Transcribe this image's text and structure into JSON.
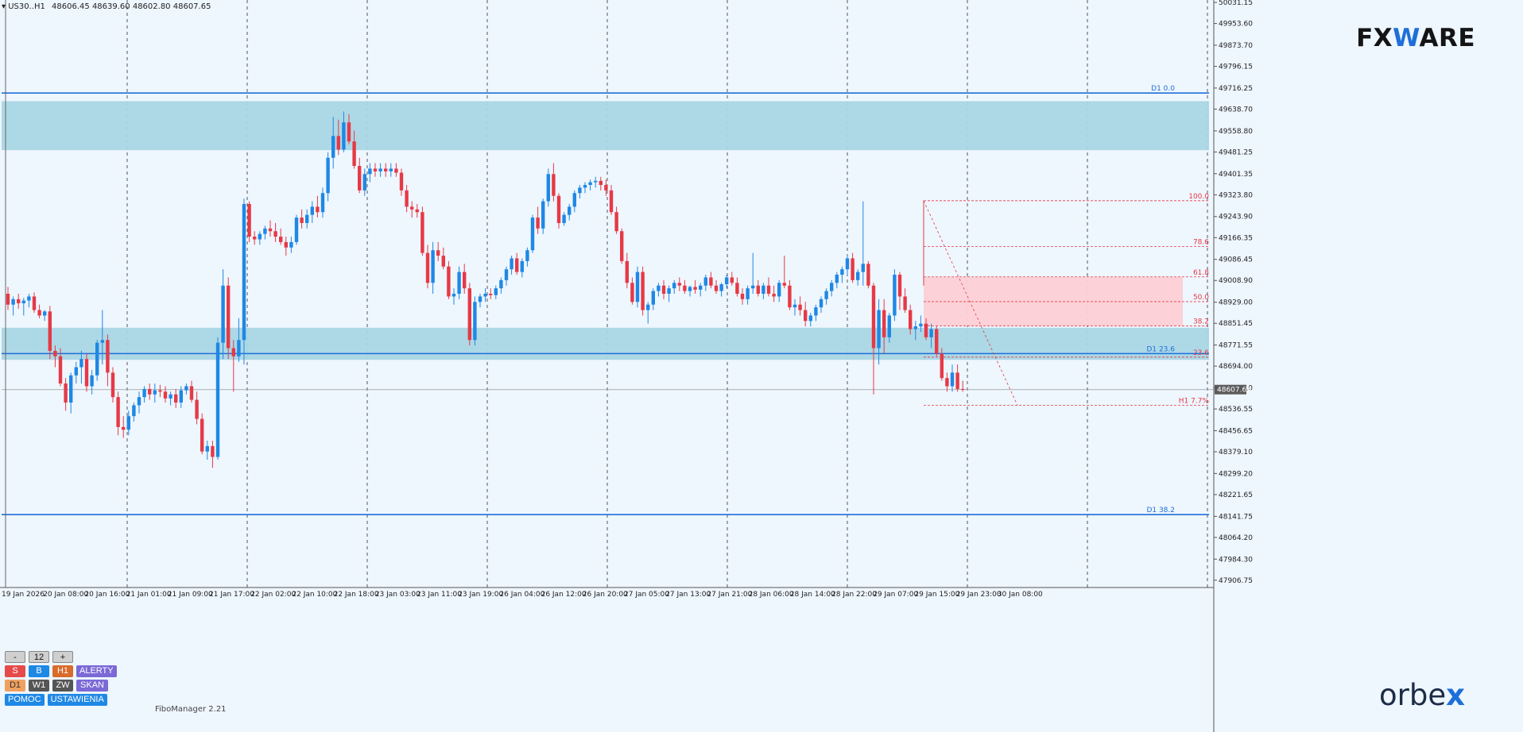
{
  "header": {
    "symbol": "US30..H1",
    "ohlc": "48606.45 48639.60 48602.80 48607.65"
  },
  "brand": {
    "fxware_pre": "FX",
    "fxware_v": "W",
    "fxware_post": "ARE",
    "orbex_pre": "orbe",
    "orbex_x": "x"
  },
  "panel": {
    "minus": "-",
    "count": "12",
    "plus": "+",
    "s": "S",
    "b": "B",
    "h1": "H1",
    "alerts": "ALERTY",
    "d1": "D1",
    "w1": "W1",
    "zw": "ZW",
    "scan": "SKAN",
    "help": "POMOC",
    "settings": "USTAWIENIA"
  },
  "indicator_name": "FiboManager 2.21",
  "colors": {
    "bull": "#1e88e5",
    "bear": "#e63946",
    "zone_blue": "#a9d6e5",
    "zone_pink": "#fcd0d6",
    "level_line": "#1e6fd9",
    "fib": "#e63946",
    "background": "#eef6fe"
  },
  "chart_data": {
    "type": "candlestick",
    "symbol": "US30..H1",
    "timeframe": "H1",
    "ylim": [
      47880,
      50040
    ],
    "y_ticks": [
      "50031.15",
      "49953.60",
      "49873.70",
      "49796.15",
      "49716.25",
      "49638.70",
      "49558.80",
      "49481.25",
      "49401.35",
      "49323.80",
      "49243.90",
      "49166.35",
      "49086.45",
      "49008.90",
      "48929.00",
      "48851.45",
      "48771.55",
      "48694.00",
      "48614.10",
      "48536.55",
      "48456.65",
      "48379.10",
      "48299.20",
      "48221.65",
      "48141.75",
      "48064.20",
      "47984.30",
      "47906.75"
    ],
    "x_ticks": [
      "19 Jan 2026",
      "20 Jan 08:00",
      "20 Jan 16:00",
      "21 Jan 01:00",
      "21 Jan 09:00",
      "21 Jan 17:00",
      "22 Jan 02:00",
      "22 Jan 10:00",
      "22 Jan 18:00",
      "23 Jan 03:00",
      "23 Jan 11:00",
      "23 Jan 19:00",
      "26 Jan 04:00",
      "26 Jan 12:00",
      "26 Jan 20:00",
      "27 Jan 05:00",
      "27 Jan 13:00",
      "27 Jan 21:00",
      "28 Jan 06:00",
      "28 Jan 14:00",
      "28 Jan 22:00",
      "29 Jan 07:00",
      "29 Jan 15:00",
      "29 Jan 23:00",
      "30 Jan 08:00"
    ],
    "current_price": "48607.65",
    "horizontal_levels": [
      {
        "label": "D1 0.0",
        "price": 49698
      },
      {
        "label": "D1 23.6",
        "price": 48740
      },
      {
        "label": "D1 38.2",
        "price": 48148
      }
    ],
    "zones": [
      {
        "from": 49488,
        "to": 49668,
        "color": "blue"
      },
      {
        "from": 48717,
        "to": 48835,
        "color": "blue"
      },
      {
        "from": 48842,
        "to": 49022,
        "color": "pink"
      }
    ],
    "fib_levels": [
      {
        "label": "100.0",
        "price": 49302
      },
      {
        "label": "78.6",
        "price": 49134
      },
      {
        "label": "61.8",
        "price": 49022
      },
      {
        "label": "50.0",
        "price": 48931
      },
      {
        "label": "38.2",
        "price": 48842
      },
      {
        "label": "23.6",
        "price": 48727
      },
      {
        "label": "H1 7.7%",
        "price": 48550
      }
    ],
    "candles": [
      [
        48960,
        48985,
        48900,
        48920
      ],
      [
        48920,
        48950,
        48880,
        48940
      ],
      [
        48940,
        48960,
        48905,
        48925
      ],
      [
        48925,
        48945,
        48880,
        48935
      ],
      [
        48935,
        48960,
        48910,
        48950
      ],
      [
        48950,
        48965,
        48890,
        48900
      ],
      [
        48900,
        48920,
        48870,
        48880
      ],
      [
        48880,
        48900,
        48860,
        48895
      ],
      [
        48895,
        48915,
        48720,
        48750
      ],
      [
        48750,
        48770,
        48690,
        48730
      ],
      [
        48730,
        48760,
        48620,
        48630
      ],
      [
        48630,
        48650,
        48530,
        48560
      ],
      [
        48560,
        48670,
        48520,
        48660
      ],
      [
        48660,
        48710,
        48630,
        48690
      ],
      [
        48690,
        48750,
        48630,
        48720
      ],
      [
        48720,
        48740,
        48600,
        48620
      ],
      [
        48620,
        48680,
        48590,
        48660
      ],
      [
        48660,
        48790,
        48640,
        48780
      ],
      [
        48780,
        48900,
        48700,
        48790
      ],
      [
        48790,
        48810,
        48620,
        48670
      ],
      [
        48670,
        48690,
        48560,
        48580
      ],
      [
        48580,
        48600,
        48440,
        48470
      ],
      [
        48470,
        48510,
        48430,
        48460
      ],
      [
        48460,
        48530,
        48440,
        48510
      ],
      [
        48510,
        48560,
        48490,
        48550
      ],
      [
        48550,
        48600,
        48520,
        48580
      ],
      [
        48580,
        48620,
        48560,
        48610
      ],
      [
        48610,
        48630,
        48570,
        48590
      ],
      [
        48590,
        48630,
        48560,
        48605
      ],
      [
        48605,
        48625,
        48580,
        48600
      ],
      [
        48600,
        48620,
        48560,
        48575
      ],
      [
        48575,
        48600,
        48550,
        48590
      ],
      [
        48590,
        48610,
        48540,
        48560
      ],
      [
        48560,
        48620,
        48540,
        48605
      ],
      [
        48605,
        48630,
        48590,
        48620
      ],
      [
        48620,
        48640,
        48560,
        48570
      ],
      [
        48570,
        48600,
        48480,
        48500
      ],
      [
        48500,
        48520,
        48370,
        48380
      ],
      [
        48380,
        48420,
        48350,
        48400
      ],
      [
        48400,
        48420,
        48320,
        48360
      ],
      [
        48360,
        48800,
        48350,
        48780
      ],
      [
        48780,
        49050,
        48720,
        48990
      ],
      [
        48990,
        49020,
        48720,
        48760
      ],
      [
        48760,
        48790,
        48600,
        48730
      ],
      [
        48730,
        48870,
        48710,
        48790
      ],
      [
        48790,
        49310,
        48700,
        49290
      ],
      [
        49290,
        49300,
        49150,
        49170
      ],
      [
        49170,
        49190,
        49140,
        49160
      ],
      [
        49160,
        49190,
        49140,
        49180
      ],
      [
        49180,
        49210,
        49160,
        49200
      ],
      [
        49200,
        49230,
        49170,
        49190
      ],
      [
        49190,
        49220,
        49150,
        49170
      ],
      [
        49170,
        49200,
        49140,
        49150
      ],
      [
        49150,
        49170,
        49100,
        49130
      ],
      [
        49130,
        49170,
        49110,
        49150
      ],
      [
        49150,
        49250,
        49140,
        49240
      ],
      [
        49240,
        49270,
        49200,
        49220
      ],
      [
        49220,
        49270,
        49200,
        49250
      ],
      [
        49250,
        49300,
        49220,
        49280
      ],
      [
        49280,
        49320,
        49240,
        49260
      ],
      [
        49260,
        49350,
        49240,
        49330
      ],
      [
        49330,
        49480,
        49300,
        49460
      ],
      [
        49460,
        49610,
        49420,
        49540
      ],
      [
        49540,
        49600,
        49470,
        49490
      ],
      [
        49490,
        49630,
        49480,
        49590
      ],
      [
        49590,
        49620,
        49510,
        49520
      ],
      [
        49520,
        49560,
        49420,
        49430
      ],
      [
        49430,
        49460,
        49330,
        49340
      ],
      [
        49340,
        49420,
        49320,
        49400
      ],
      [
        49400,
        49440,
        49370,
        49420
      ],
      [
        49420,
        49440,
        49390,
        49410
      ],
      [
        49410,
        49440,
        49390,
        49420
      ],
      [
        49420,
        49440,
        49390,
        49410
      ],
      [
        49410,
        49440,
        49390,
        49420
      ],
      [
        49420,
        49440,
        49390,
        49405
      ],
      [
        49405,
        49420,
        49320,
        49340
      ],
      [
        49340,
        49360,
        49260,
        49280
      ],
      [
        49280,
        49300,
        49240,
        49270
      ],
      [
        49270,
        49290,
        49240,
        49260
      ],
      [
        49260,
        49280,
        49100,
        49110
      ],
      [
        49110,
        49140,
        48980,
        49000
      ],
      [
        49000,
        49150,
        48960,
        49120
      ],
      [
        49120,
        49150,
        49080,
        49100
      ],
      [
        49100,
        49130,
        49050,
        49060
      ],
      [
        49060,
        49080,
        48940,
        48950
      ],
      [
        48950,
        48980,
        48920,
        48960
      ],
      [
        48960,
        49060,
        48940,
        49040
      ],
      [
        49040,
        49070,
        48960,
        48980
      ],
      [
        48980,
        49000,
        48770,
        48790
      ],
      [
        48790,
        48950,
        48770,
        48930
      ],
      [
        48930,
        48960,
        48910,
        48950
      ],
      [
        48950,
        48980,
        48930,
        48960
      ],
      [
        48960,
        48980,
        48940,
        48955
      ],
      [
        48955,
        48990,
        48940,
        48980
      ],
      [
        48980,
        49020,
        48960,
        49010
      ],
      [
        49010,
        49060,
        48990,
        49050
      ],
      [
        49050,
        49100,
        49030,
        49090
      ],
      [
        49090,
        49110,
        49030,
        49040
      ],
      [
        49040,
        49090,
        49020,
        49080
      ],
      [
        49080,
        49130,
        49060,
        49120
      ],
      [
        49120,
        49250,
        49110,
        49240
      ],
      [
        49240,
        49280,
        49180,
        49200
      ],
      [
        49200,
        49310,
        49180,
        49300
      ],
      [
        49300,
        49420,
        49280,
        49400
      ],
      [
        49400,
        49440,
        49300,
        49320
      ],
      [
        49320,
        49330,
        49200,
        49220
      ],
      [
        49220,
        49260,
        49210,
        49250
      ],
      [
        49250,
        49290,
        49230,
        49280
      ],
      [
        49280,
        49340,
        49260,
        49330
      ],
      [
        49330,
        49360,
        49310,
        49350
      ],
      [
        49350,
        49370,
        49330,
        49360
      ],
      [
        49360,
        49380,
        49340,
        49370
      ],
      [
        49370,
        49390,
        49350,
        49375
      ],
      [
        49375,
        49390,
        49340,
        49360
      ],
      [
        49360,
        49380,
        49320,
        49340
      ],
      [
        49340,
        49360,
        49250,
        49260
      ],
      [
        49260,
        49280,
        49180,
        49190
      ],
      [
        49190,
        49200,
        49070,
        49080
      ],
      [
        49080,
        49110,
        48980,
        49000
      ],
      [
        49000,
        49020,
        48920,
        48930
      ],
      [
        48930,
        49060,
        48910,
        49040
      ],
      [
        49040,
        49060,
        48880,
        48900
      ],
      [
        48900,
        48930,
        48850,
        48920
      ],
      [
        48920,
        48980,
        48900,
        48970
      ],
      [
        48970,
        49000,
        48950,
        48990
      ],
      [
        48990,
        49010,
        48940,
        48960
      ],
      [
        48960,
        48990,
        48930,
        48980
      ],
      [
        48980,
        49010,
        48960,
        49000
      ],
      [
        49000,
        49020,
        48970,
        48990
      ],
      [
        48990,
        49010,
        48960,
        48970
      ],
      [
        48970,
        48990,
        48950,
        48985
      ],
      [
        48985,
        49010,
        48960,
        48975
      ],
      [
        48975,
        49000,
        48950,
        48990
      ],
      [
        48990,
        49030,
        48970,
        49020
      ],
      [
        49020,
        49040,
        48980,
        48990
      ],
      [
        48990,
        49010,
        48960,
        48970
      ],
      [
        48970,
        49000,
        48950,
        48995
      ],
      [
        48995,
        49030,
        48980,
        49020
      ],
      [
        49020,
        49040,
        48990,
        49000
      ],
      [
        49000,
        49020,
        48950,
        48960
      ],
      [
        48960,
        48980,
        48920,
        48940
      ],
      [
        48940,
        48990,
        48920,
        48980
      ],
      [
        48980,
        49110,
        48960,
        48990
      ],
      [
        48990,
        49010,
        48950,
        48960
      ],
      [
        48960,
        49000,
        48940,
        48990
      ],
      [
        48990,
        49020,
        48950,
        48960
      ],
      [
        48960,
        48990,
        48930,
        48950
      ],
      [
        48950,
        49010,
        48930,
        49000
      ],
      [
        49000,
        49100,
        48980,
        48990
      ],
      [
        48990,
        49010,
        48900,
        48910
      ],
      [
        48910,
        48940,
        48880,
        48920
      ],
      [
        48920,
        48950,
        48880,
        48900
      ],
      [
        48900,
        48930,
        48840,
        48860
      ],
      [
        48860,
        48890,
        48840,
        48880
      ],
      [
        48880,
        48920,
        48860,
        48910
      ],
      [
        48910,
        48950,
        48890,
        48940
      ],
      [
        48940,
        48980,
        48920,
        48970
      ],
      [
        48970,
        49010,
        48950,
        49000
      ],
      [
        49000,
        49040,
        48980,
        49030
      ],
      [
        49030,
        49060,
        49000,
        49050
      ],
      [
        49050,
        49100,
        49030,
        49090
      ],
      [
        49090,
        49110,
        49000,
        49010
      ],
      [
        49010,
        49050,
        48990,
        49040
      ],
      [
        49040,
        49300,
        48990,
        49070
      ],
      [
        49070,
        49080,
        48980,
        48990
      ],
      [
        48990,
        49000,
        48590,
        48760
      ],
      [
        48760,
        48940,
        48700,
        48900
      ],
      [
        48900,
        48940,
        48740,
        48800
      ],
      [
        48800,
        48890,
        48780,
        48880
      ],
      [
        48880,
        49050,
        48860,
        49030
      ],
      [
        49030,
        49040,
        48900,
        48950
      ],
      [
        48950,
        48980,
        48890,
        48900
      ],
      [
        48900,
        48920,
        48810,
        48830
      ],
      [
        48830,
        48860,
        48790,
        48840
      ],
      [
        48840,
        48880,
        48820,
        48850
      ],
      [
        48850,
        48870,
        48790,
        48800
      ],
      [
        48800,
        48850,
        48760,
        48830
      ],
      [
        48830,
        48840,
        48730,
        48740
      ],
      [
        48740,
        48760,
        48640,
        48650
      ],
      [
        48650,
        48670,
        48600,
        48620
      ],
      [
        48620,
        48700,
        48600,
        48670
      ],
      [
        48670,
        48700,
        48600,
        48610
      ],
      [
        48610,
        48640,
        48600,
        48608
      ]
    ]
  }
}
